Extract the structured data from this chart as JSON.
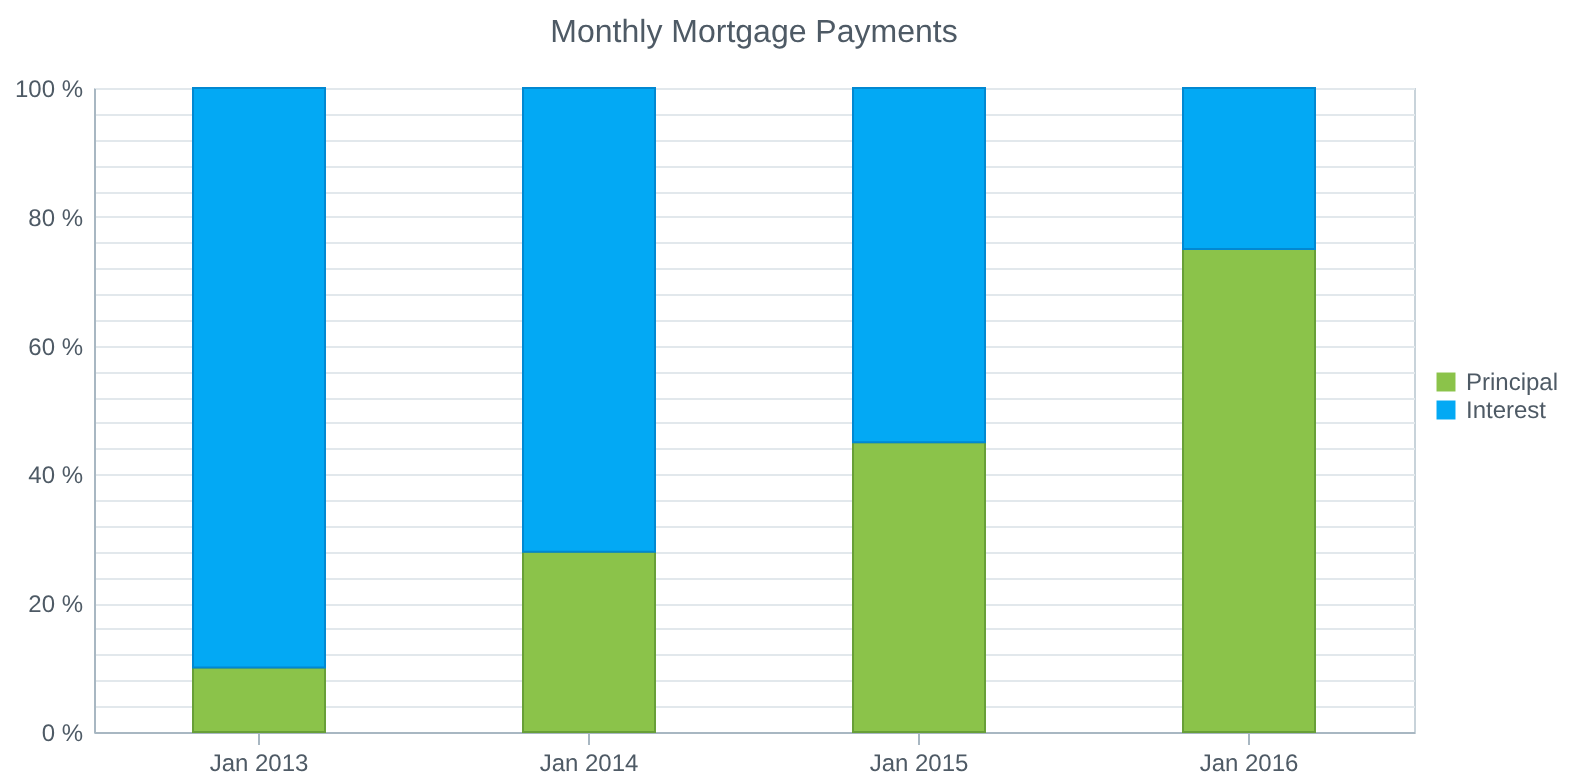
{
  "chart_data": {
    "type": "bar",
    "title": "Monthly Mortgage Payments",
    "categories": [
      "Jan 2013",
      "Jan 2014",
      "Jan 2015",
      "Jan 2016"
    ],
    "series": [
      {
        "name": "Principal",
        "color": "#8bc34a",
        "values": [
          10,
          28,
          45,
          75
        ]
      },
      {
        "name": "Interest",
        "color": "#03a9f4",
        "values": [
          90,
          72,
          55,
          25
        ]
      }
    ],
    "stacked": true,
    "ylim": [
      0,
      100
    ],
    "yticks": [
      {
        "value": 0,
        "label": "0 %"
      },
      {
        "value": 4,
        "label": null
      },
      {
        "value": 8,
        "label": null
      },
      {
        "value": 12,
        "label": null
      },
      {
        "value": 16,
        "label": null
      },
      {
        "value": 20,
        "label": "20 %"
      },
      {
        "value": 24,
        "label": null
      },
      {
        "value": 28,
        "label": null
      },
      {
        "value": 32,
        "label": null
      },
      {
        "value": 36,
        "label": null
      },
      {
        "value": 40,
        "label": "40 %"
      },
      {
        "value": 44,
        "label": null
      },
      {
        "value": 48,
        "label": null
      },
      {
        "value": 52,
        "label": null
      },
      {
        "value": 56,
        "label": null
      },
      {
        "value": 60,
        "label": "60 %"
      },
      {
        "value": 64,
        "label": null
      },
      {
        "value": 68,
        "label": null
      },
      {
        "value": 72,
        "label": null
      },
      {
        "value": 76,
        "label": null
      },
      {
        "value": 80,
        "label": "80 %"
      },
      {
        "value": 84,
        "label": null
      },
      {
        "value": 88,
        "label": null
      },
      {
        "value": 92,
        "label": null
      },
      {
        "value": 96,
        "label": null
      },
      {
        "value": 100,
        "label": "100 %"
      }
    ],
    "grid": "y",
    "legend": "right"
  }
}
